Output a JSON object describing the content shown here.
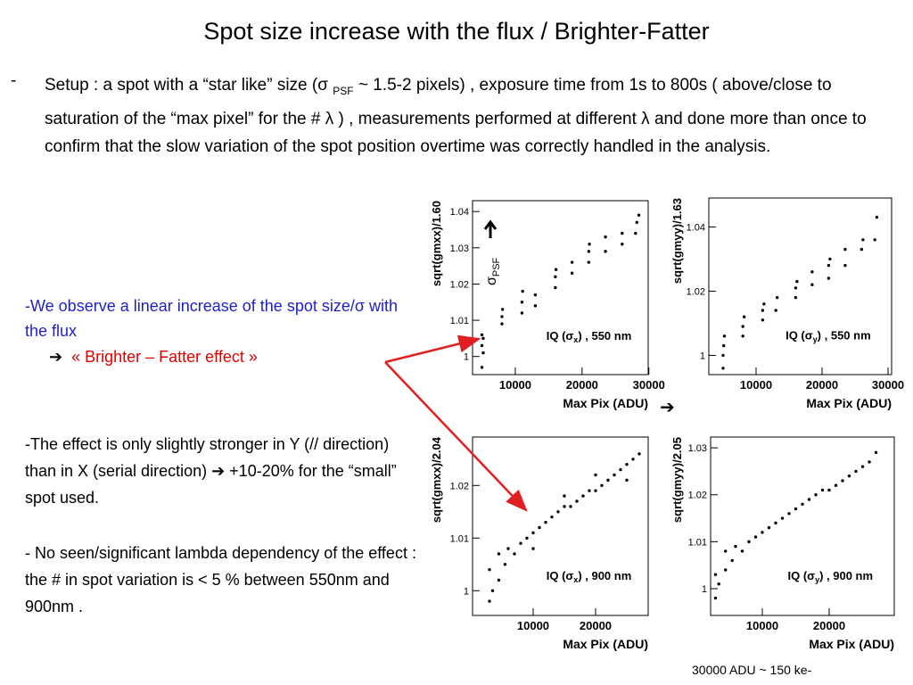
{
  "slide": {
    "title": "Spot size increase with the flux / Brighter-Fatter",
    "setup": {
      "bullet": "-",
      "pre": "Setup :  a spot with a “star like” size (σ ",
      "sub": "PSF",
      "post": " ~ 1.5-2 pixels) , exposure time from 1s to 800s ( above/close to saturation of the “max pixel” for the #  λ ) , measurements performed at different λ and done more than once to confirm that the slow variation of the spot position overtime was correctly handled in the analysis."
    },
    "observe": "-We observe a linear increase of the spot size/σ with the flux",
    "arrow": "➔",
    "effect": "« Brighter – Fatter effect »",
    "stronger": "-The effect is only slightly stronger in Y (// direction) than in X (serial direction) ➔ +10-20% for the “small” spot used.",
    "lambda": "- No seen/significant lambda dependency of the effect : the # in spot variation is < 5 % between 550nm and 900nm .",
    "chart_arrow": "➔",
    "footnote": "30000 ADU ~ 150 ke-"
  },
  "chart_data": [
    {
      "type": "scatter",
      "x_label": "Max Pix (ADU)",
      "y_label": "sqrt(gmxx)/1.60",
      "color": "#000000",
      "annotation": {
        "pre": "IQ (σ",
        "sub": "x",
        "post": ")  , 550 nm"
      },
      "marker_label": {
        "text": "σ",
        "sub": "PSF"
      },
      "xlim": [
        3600,
        29900
      ],
      "ylim": [
        0.995,
        1.043
      ],
      "xticks": [
        10000,
        20000,
        30000
      ],
      "yticks": [
        1,
        1.01,
        1.02,
        1.03,
        1.04
      ],
      "x": [
        5000,
        5000,
        5000,
        5200,
        5200,
        8000,
        8000,
        8100,
        11000,
        11000,
        11100,
        13000,
        13000,
        16000,
        16000,
        16100,
        18500,
        18500,
        21000,
        21000,
        21100,
        23500,
        23500,
        26000,
        26000,
        28000,
        28200,
        28500
      ],
      "values": [
        0.997,
        1.003,
        1.006,
        1.001,
        1.005,
        1.009,
        1.011,
        1.013,
        1.012,
        1.015,
        1.018,
        1.014,
        1.017,
        1.019,
        1.022,
        1.024,
        1.023,
        1.026,
        1.026,
        1.029,
        1.031,
        1.029,
        1.033,
        1.031,
        1.034,
        1.034,
        1.037,
        1.039
      ]
    },
    {
      "type": "scatter",
      "x_label": "Max Pix (ADU)",
      "y_label": "sqrt(gmyy)/1.63",
      "color": "#000000",
      "annotation": {
        "pre": "IQ (σ",
        "sub": "y",
        "post": ")  , 550 nm"
      },
      "xlim": [
        2840,
        30540
      ],
      "ylim": [
        0.994,
        1.049
      ],
      "xticks": [
        10000,
        20000,
        30000
      ],
      "yticks": [
        1,
        1.02,
        1.04
      ],
      "x": [
        5000,
        5000,
        5100,
        5200,
        8000,
        8000,
        8200,
        11000,
        11000,
        11200,
        13000,
        13200,
        16000,
        16000,
        16200,
        18500,
        18500,
        21000,
        21000,
        21200,
        23500,
        23500,
        26000,
        26200,
        28000,
        28300
      ],
      "values": [
        0.996,
        1.0,
        1.003,
        1.006,
        1.006,
        1.009,
        1.012,
        1.011,
        1.014,
        1.016,
        1.014,
        1.018,
        1.018,
        1.021,
        1.023,
        1.022,
        1.026,
        1.024,
        1.028,
        1.03,
        1.028,
        1.033,
        1.033,
        1.036,
        1.036,
        1.043
      ]
    },
    {
      "type": "scatter",
      "x_label": "Max Pix (ADU)",
      "y_label": "sqrt(gmxx)/2.04",
      "color": "#000000",
      "annotation": {
        "pre": "IQ (σ",
        "sub": "x",
        "post": ")  , 900 nm"
      },
      "xlim": [
        290,
        28430
      ],
      "ylim": [
        0.9953,
        1.0292
      ],
      "xticks": [
        10000,
        20000
      ],
      "yticks": [
        1,
        1.01,
        1.02
      ],
      "x": [
        3000,
        3000,
        3500,
        4500,
        4500,
        5500,
        6000,
        7000,
        8000,
        9000,
        10000,
        11000,
        12000,
        13000,
        14000,
        15000,
        16000,
        17000,
        18000,
        19000,
        20000,
        21000,
        22000,
        23000,
        24000,
        25000,
        26000,
        27000,
        10000,
        15000,
        20000,
        25000
      ],
      "values": [
        0.998,
        1.004,
        1.0,
        1.002,
        1.007,
        1.005,
        1.008,
        1.007,
        1.009,
        1.01,
        1.011,
        1.012,
        1.013,
        1.014,
        1.015,
        1.016,
        1.016,
        1.017,
        1.018,
        1.019,
        1.019,
        1.02,
        1.021,
        1.022,
        1.023,
        1.024,
        1.025,
        1.026,
        1.008,
        1.018,
        1.022,
        1.021
      ]
    },
    {
      "type": "scatter",
      "x_label": "Max Pix (ADU)",
      "y_label": "sqrt(gmyy)/2.05",
      "color": "#000000",
      "annotation": {
        "pre": "IQ (σ",
        "sub": "y",
        "post": ")  , 900 nm"
      },
      "xlim": [
        2270,
        29730
      ],
      "ylim": [
        0.9943,
        1.0323
      ],
      "xticks": [
        10000,
        20000
      ],
      "yticks": [
        1,
        1.01,
        1.02,
        1.03
      ],
      "x": [
        3000,
        3000,
        3500,
        4500,
        4500,
        5500,
        6000,
        7000,
        8000,
        9000,
        10000,
        11000,
        12000,
        13000,
        14000,
        15000,
        16000,
        17000,
        18000,
        19000,
        20000,
        21000,
        22000,
        23000,
        24000,
        25000,
        26000,
        27000
      ],
      "values": [
        0.998,
        1.003,
        1.001,
        1.004,
        1.008,
        1.006,
        1.009,
        1.008,
        1.01,
        1.011,
        1.012,
        1.013,
        1.014,
        1.015,
        1.016,
        1.017,
        1.018,
        1.019,
        1.02,
        1.021,
        1.021,
        1.022,
        1.023,
        1.024,
        1.025,
        1.026,
        1.027,
        1.029
      ]
    }
  ]
}
